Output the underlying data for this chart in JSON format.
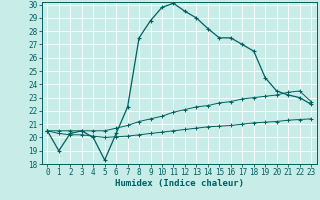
{
  "xlabel": "Humidex (Indice chaleur)",
  "bg_color": "#c8ece8",
  "grid_color": "#b0d8d0",
  "line_color": "#006060",
  "xlim": [
    -0.5,
    23.5
  ],
  "ylim": [
    18,
    30.2
  ],
  "xticks": [
    0,
    1,
    2,
    3,
    4,
    5,
    6,
    7,
    8,
    9,
    10,
    11,
    12,
    13,
    14,
    15,
    16,
    17,
    18,
    19,
    20,
    21,
    22,
    23
  ],
  "yticks": [
    18,
    19,
    20,
    21,
    22,
    23,
    24,
    25,
    26,
    27,
    28,
    29,
    30
  ],
  "main_y": [
    20.5,
    19.0,
    20.3,
    20.5,
    20.0,
    18.3,
    20.3,
    22.3,
    27.5,
    28.8,
    29.8,
    30.1,
    29.5,
    29.0,
    28.2,
    27.5,
    27.5,
    27.0,
    26.5,
    24.5,
    23.5,
    23.2,
    23.0,
    22.5
  ],
  "line2_y": [
    20.5,
    20.5,
    20.5,
    20.5,
    20.5,
    20.5,
    20.7,
    20.9,
    21.2,
    21.4,
    21.6,
    21.9,
    22.1,
    22.3,
    22.4,
    22.6,
    22.7,
    22.9,
    23.0,
    23.1,
    23.2,
    23.4,
    23.5,
    22.7
  ],
  "line3_y": [
    20.5,
    20.3,
    20.2,
    20.2,
    20.1,
    20.0,
    20.05,
    20.1,
    20.2,
    20.3,
    20.4,
    20.5,
    20.6,
    20.7,
    20.8,
    20.85,
    20.9,
    21.0,
    21.1,
    21.15,
    21.2,
    21.3,
    21.35,
    21.4
  ]
}
